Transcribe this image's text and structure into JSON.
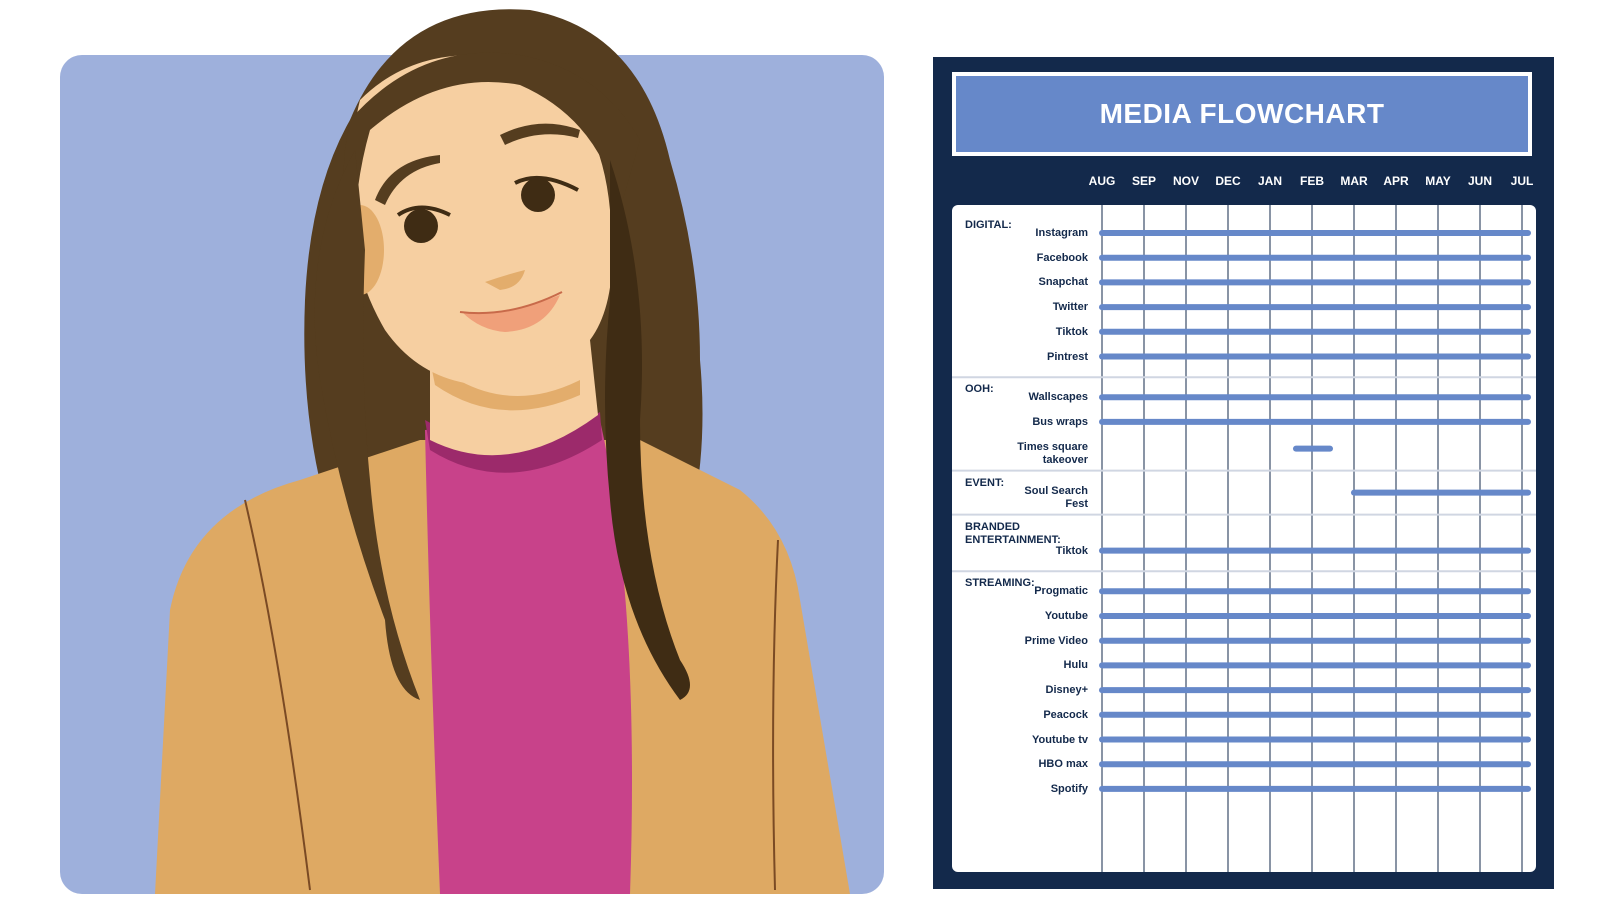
{
  "illustration": {
    "background_color": "#9eb0dc",
    "hair_color": "#553d1f",
    "skin_color": "#f6cfa1",
    "shirt_color": "#c8428a",
    "jacket_color": "#dea963",
    "icon": "woman-portrait"
  },
  "chart_data": {
    "type": "gantt",
    "title": "MEDIA FLOWCHART",
    "months": [
      "AUG",
      "SEP",
      "NOV",
      "DEC",
      "JAN",
      "FEB",
      "MAR",
      "APR",
      "MAY",
      "JUN",
      "JUL"
    ],
    "bar_color": "#6688c9",
    "sections": [
      {
        "name": "DIGITAL:",
        "rows": [
          {
            "label": "Instagram",
            "start": "AUG",
            "end": "JUL"
          },
          {
            "label": "Facebook",
            "start": "AUG",
            "end": "JUL"
          },
          {
            "label": "Snapchat",
            "start": "AUG",
            "end": "JUL"
          },
          {
            "label": "Twitter",
            "start": "AUG",
            "end": "JUL"
          },
          {
            "label": "Tiktok",
            "start": "AUG",
            "end": "JUL"
          },
          {
            "label": "Pintrest",
            "start": "AUG",
            "end": "JUL"
          }
        ]
      },
      {
        "name": "OOH:",
        "rows": [
          {
            "label": "Wallscapes",
            "start": "AUG",
            "end": "JUL"
          },
          {
            "label": "Bus wraps",
            "start": "AUG",
            "end": "JUL"
          },
          {
            "label": "Times square\ntakeover",
            "start": "FEB",
            "end": "FEB"
          }
        ]
      },
      {
        "name": "EVENT:",
        "rows": [
          {
            "label": "Soul Search\nFest",
            "start": "MAR",
            "end": "JUL"
          }
        ]
      },
      {
        "name": "BRANDED\nENTERTAINMENT:",
        "rows": [
          {
            "label": "Tiktok",
            "start": "AUG",
            "end": "JUL"
          }
        ]
      },
      {
        "name": "STREAMING:",
        "rows": [
          {
            "label": "Progmatic",
            "start": "AUG",
            "end": "JUL"
          },
          {
            "label": "Youtube",
            "start": "AUG",
            "end": "JUL"
          },
          {
            "label": "Prime Video",
            "start": "AUG",
            "end": "JUL"
          },
          {
            "label": "Hulu",
            "start": "AUG",
            "end": "JUL"
          },
          {
            "label": "Disney+",
            "start": "AUG",
            "end": "JUL"
          },
          {
            "label": "Peacock",
            "start": "AUG",
            "end": "JUL"
          },
          {
            "label": "Youtube tv",
            "start": "AUG",
            "end": "JUL"
          },
          {
            "label": "HBO max",
            "start": "AUG",
            "end": "JUL"
          },
          {
            "label": "Spotify",
            "start": "AUG",
            "end": "JUL"
          }
        ]
      }
    ]
  }
}
